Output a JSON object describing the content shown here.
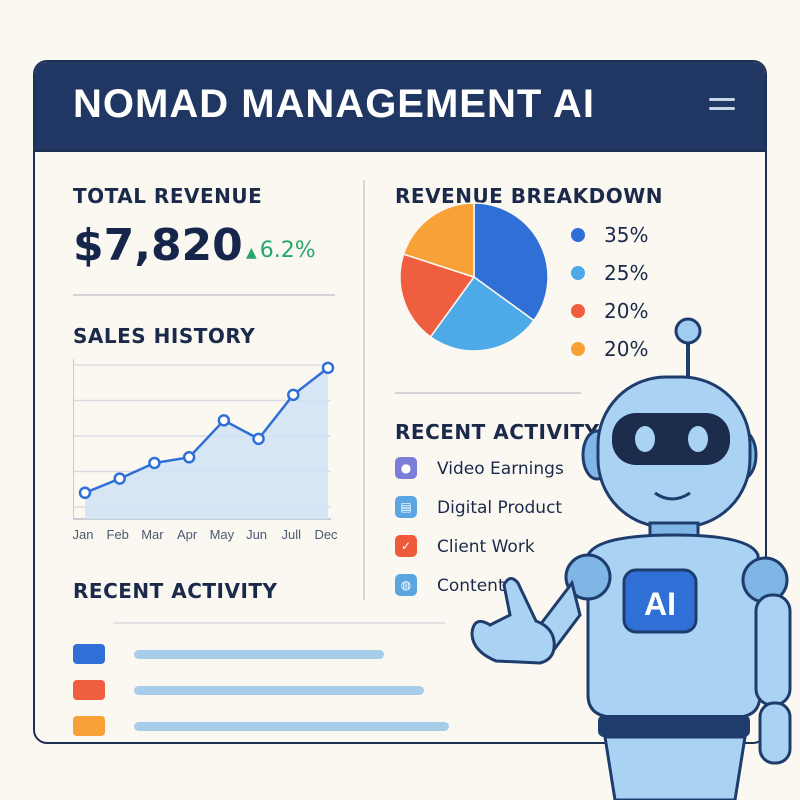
{
  "header": {
    "title": "NOMAD MANAGEMENT AI"
  },
  "revenue": {
    "label": "TOTAL REVENUE",
    "value": "$7,820",
    "change": "6.2%"
  },
  "sales_history": {
    "label": "SALES HISTORY"
  },
  "breakdown": {
    "label": "REVENUE BREAKDOWN",
    "slices": [
      {
        "percent": "35%",
        "value": 35,
        "color": "#2f6fd6"
      },
      {
        "percent": "25%",
        "value": 25,
        "color": "#4ea9e8"
      },
      {
        "percent": "20%",
        "value": 20,
        "color": "#ef5e3e"
      },
      {
        "percent": "20%",
        "value": 20,
        "color": "#f7a137"
      }
    ]
  },
  "recent_activity_right": {
    "label": "RECENT ACTIVITY",
    "items": [
      {
        "label": "Video Earnings",
        "icon": "play-icon",
        "color": "#7b7ed8"
      },
      {
        "label": "Digital Product",
        "icon": "document-icon",
        "color": "#5aa5e2"
      },
      {
        "label": "Client Work",
        "icon": "checkmark-icon",
        "color": "#ef5a3c"
      },
      {
        "label": "Content",
        "icon": "globe-icon",
        "color": "#5aa5e2"
      }
    ]
  },
  "recent_activity_left": {
    "label": "RECENT ACTIVITY",
    "rows": [
      {
        "color": "#2f6fd6"
      },
      {
        "color": "#ef5e3e"
      },
      {
        "color": "#f7a137"
      }
    ]
  },
  "chart_data": {
    "type": "line",
    "categories": [
      "Jan",
      "Feb",
      "Mar",
      "Apr",
      "May",
      "Jun",
      "Jull",
      "Dec"
    ],
    "series": [
      {
        "values": [
          1.0,
          2.0,
          3.1,
          3.5,
          6.1,
          4.8,
          7.9,
          9.8
        ]
      }
    ],
    "ylim": [
      0,
      10
    ],
    "grid": true,
    "colors": {
      "line": "#2f6fd6",
      "fill": "#cfe3f6"
    }
  },
  "assistant": {
    "badge": "AI"
  }
}
